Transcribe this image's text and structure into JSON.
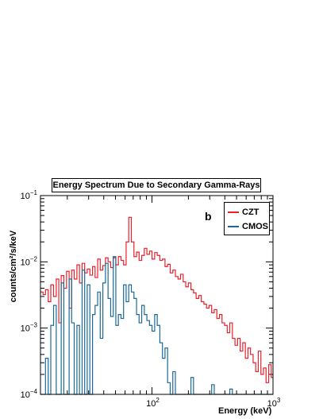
{
  "chart_data": {
    "type": "line",
    "title": "Energy Spectrum Due to Secondary Gamma-Rays",
    "panel_label": "b",
    "xlabel": "Energy (keV)",
    "ylabel": "counts/cm²/s/keV",
    "xscale": "log",
    "yscale": "log",
    "xlim": [
      12,
      1000
    ],
    "ylim": [
      0.0001,
      0.1
    ],
    "x_ticks": [
      {
        "value": 100,
        "base": "10",
        "exp": "2"
      },
      {
        "value": 1000,
        "base": "10",
        "exp": "3"
      }
    ],
    "y_ticks": [
      {
        "value": 0.0001,
        "base": "10",
        "exp": "−4"
      },
      {
        "value": 0.001,
        "base": "10",
        "exp": "−3"
      },
      {
        "value": 0.01,
        "base": "10",
        "exp": "−2"
      },
      {
        "value": 0.1,
        "base": "10",
        "exp": "−1"
      }
    ],
    "legend_position": "top-right",
    "series": [
      {
        "name": "CZT",
        "color": "#e8212b",
        "edges": [
          12,
          12.6,
          13.2,
          13.9,
          14.6,
          15.4,
          16.2,
          17,
          17.8,
          18.7,
          19.7,
          20.7,
          21.7,
          22.8,
          24,
          25.2,
          26.5,
          27.8,
          29.2,
          30.7,
          32.3,
          33.9,
          35.6,
          37.4,
          39.3,
          41.3,
          43.4,
          45.6,
          47.9,
          50.3,
          52.8,
          55.5,
          58.3,
          61.2,
          64.3,
          67.6,
          71,
          74.6,
          78.3,
          82.3,
          86.5,
          90.8,
          95.4,
          100.2,
          105.3,
          110.6,
          116.2,
          122.1,
          128.2,
          134.7,
          141.5,
          148.7,
          156.2,
          164.1,
          172.4,
          181.1,
          190.2,
          199.8,
          209.9,
          220.5,
          231.7,
          243.4,
          255.7,
          268.6,
          282.2,
          296.4,
          311.4,
          327.1,
          343.6,
          361,
          379.2,
          398.4,
          418.5,
          439.6,
          461.8,
          485.2,
          509.7,
          535.4,
          562.5,
          590.9,
          620.8,
          652.1,
          685,
          719.6,
          756,
          794.2,
          834.3,
          876.4,
          920.7,
          967.2,
          1000
        ],
        "values": [
          0.0035,
          0.0032,
          0.0038,
          0.0025,
          0.0045,
          0.003,
          0.0055,
          0.0012,
          0.0062,
          0.004,
          0.0072,
          0.002,
          0.0075,
          0.0055,
          0.009,
          0.0048,
          0.0095,
          0.0068,
          0.0078,
          0.0063,
          0.0085,
          0.0058,
          0.011,
          0.0075,
          0.0088,
          0.0115,
          0.01,
          0.0082,
          0.0115,
          0.009,
          0.012,
          0.0105,
          0.009,
          0.02,
          0.047,
          0.02,
          0.012,
          0.014,
          0.0105,
          0.0125,
          0.016,
          0.013,
          0.0145,
          0.011,
          0.0138,
          0.0125,
          0.0105,
          0.011,
          0.0085,
          0.0092,
          0.0068,
          0.0075,
          0.006,
          0.0055,
          0.0065,
          0.005,
          0.0042,
          0.0048,
          0.0038,
          0.0034,
          0.0028,
          0.0031,
          0.0025,
          0.0023,
          0.002,
          0.0022,
          0.0017,
          0.0019,
          0.0014,
          0.0016,
          0.0012,
          0.0011,
          0.00085,
          0.0012,
          0.0007,
          0.00055,
          0.0007,
          0.00045,
          0.0006,
          0.00035,
          0.0005,
          0.0004,
          0.0003,
          0.00022,
          0.00045,
          0.0002,
          0.00025,
          0.00015,
          0.00028,
          0.00018
        ]
      },
      {
        "name": "CMOS",
        "color": "#1b6a96",
        "edges": [
          12,
          12.6,
          13.2,
          13.9,
          14.6,
          15.4,
          16.2,
          17,
          17.8,
          18.7,
          19.7,
          20.7,
          21.7,
          22.8,
          24,
          25.2,
          26.5,
          27.8,
          29.2,
          30.7,
          32.3,
          33.9,
          35.6,
          37.4,
          39.3,
          41.3,
          43.4,
          45.6,
          47.9,
          50.3,
          52.8,
          55.5,
          58.3,
          61.2,
          64.3,
          67.6,
          71,
          74.6,
          78.3,
          82.3,
          86.5,
          90.8,
          95.4,
          100.2,
          105.3,
          110.6,
          116.2,
          122.1,
          128.2,
          134.7,
          141.5,
          148.7,
          156.2,
          164.1,
          172.4,
          181.1,
          190.2,
          199.8,
          209.9,
          220.5,
          231.7,
          243.4,
          255.7,
          268.6,
          282.2,
          296.4,
          311.4,
          327.1,
          343.6,
          361,
          379.2,
          398.4,
          418.5,
          439.6,
          461.8,
          485.2,
          509.7,
          535.4,
          562.5,
          590.9,
          620.8,
          652.1,
          685,
          719.6,
          756,
          794.2,
          834.3,
          876.4,
          920.7,
          967.2,
          1000
        ],
        "values": [
          0.0001,
          0.0001,
          0.00035,
          0.0001,
          0.0011,
          0.0022,
          0.0001,
          0.0001,
          0.0048,
          0.0001,
          0.0001,
          0.0055,
          0.0012,
          0.0001,
          0.0011,
          0.0001,
          0.0075,
          0.0001,
          0.0045,
          0.0001,
          0.0016,
          0.0022,
          0.0035,
          0.0007,
          0.0048,
          0.0095,
          0.0028,
          0.0015,
          0.012,
          0.0011,
          0.0016,
          0.0014,
          0.0045,
          0.0025,
          0.0045,
          0.0035,
          0.0028,
          0.0016,
          0.0012,
          0.0022,
          0.0016,
          0.0013,
          0.0011,
          0.0009,
          0.0016,
          0.0011,
          0.0006,
          0.00035,
          0.0005,
          0.00015,
          0.0001,
          0.00022,
          0.0001,
          0.0001,
          0.0001,
          0.0001,
          0.0001,
          0.0001,
          0.00018,
          0.0001,
          0.0001,
          0.0001,
          0.0001,
          0.0001,
          0.0001,
          0.0001,
          0.00014,
          0.0001,
          0.0001,
          0.0001,
          0.0001,
          0.0001,
          0.0001,
          0.00012,
          0.0001,
          0.0001,
          0.0001,
          0.0001,
          0.0001,
          0.0001,
          0.0001,
          0.0001,
          0.0001,
          0.0001,
          0.0001,
          0.0001,
          0.0001,
          0.0001,
          0.0001,
          0.0001
        ]
      }
    ]
  }
}
